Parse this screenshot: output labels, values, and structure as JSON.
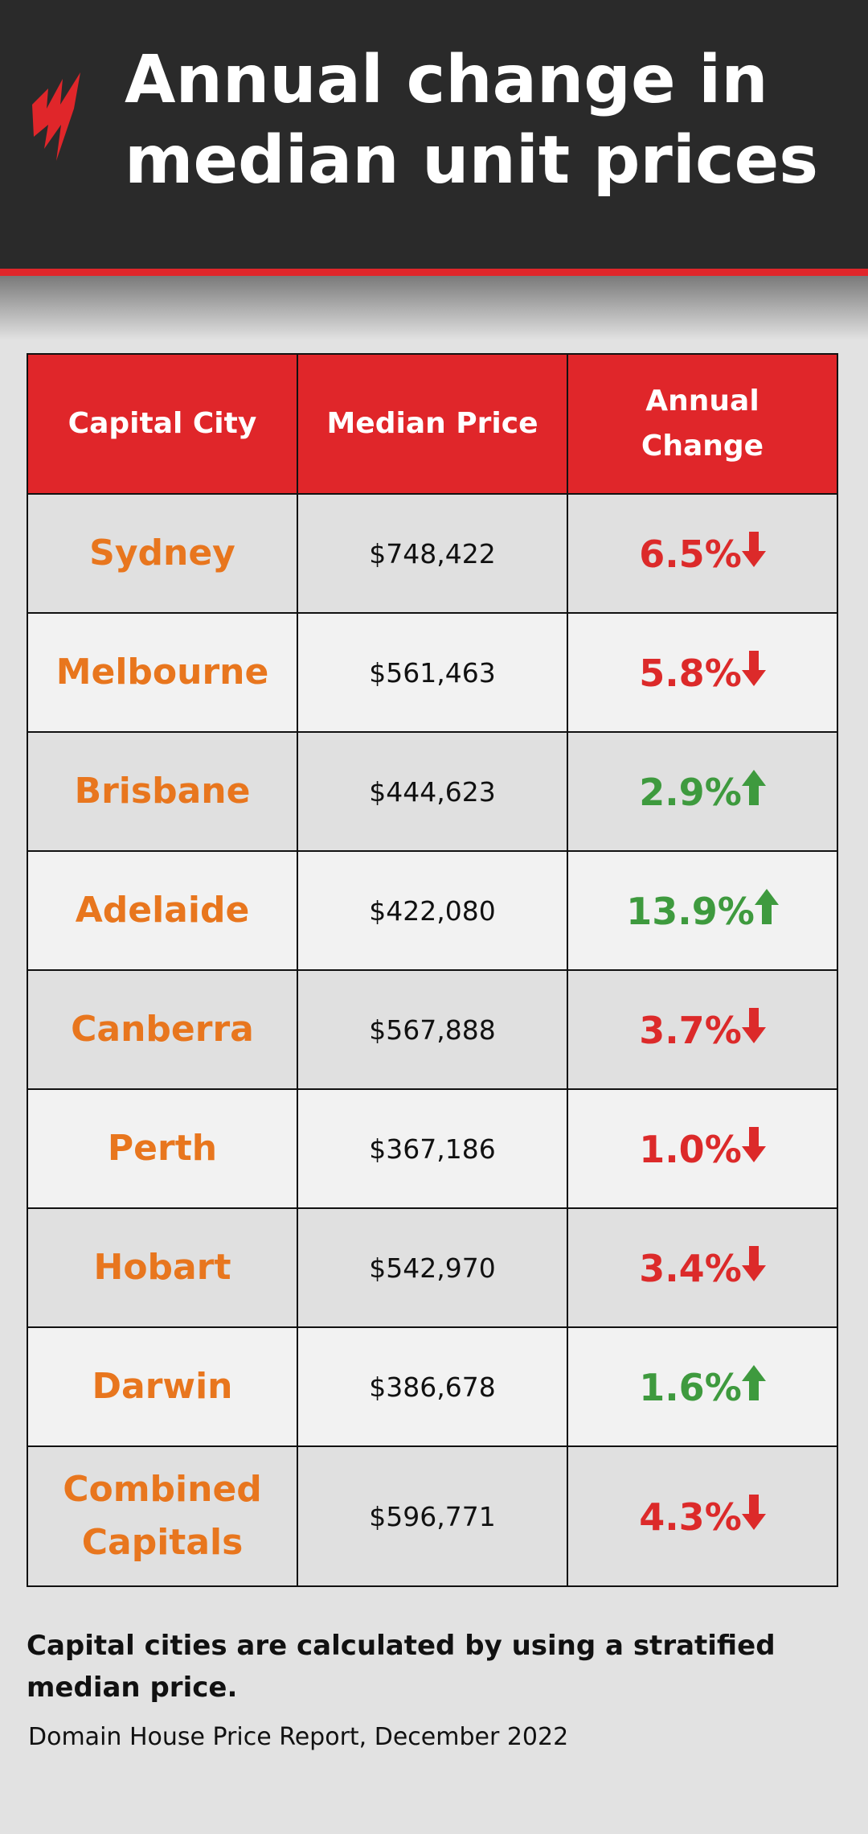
{
  "header": {
    "title_lines": [
      "Annual change in",
      "median unit prices"
    ]
  },
  "table": {
    "columns": [
      "Capital City",
      "Median Price",
      [
        "Annual",
        "Change"
      ]
    ],
    "rows": [
      {
        "city": "Sydney",
        "price": "$748,422",
        "change": "6.5%",
        "direction": "down"
      },
      {
        "city": "Melbourne",
        "price": "$561,463",
        "change": "5.8%",
        "direction": "down"
      },
      {
        "city": "Brisbane",
        "price": "$444,623",
        "change": "2.9%",
        "direction": "up"
      },
      {
        "city": "Adelaide",
        "price": "$422,080",
        "change": "13.9%",
        "direction": "up"
      },
      {
        "city": "Canberra",
        "price": "$567,888",
        "change": "3.7%",
        "direction": "down"
      },
      {
        "city": "Perth",
        "price": "$367,186",
        "change": "1.0%",
        "direction": "down"
      },
      {
        "city": "Hobart",
        "price": "$542,970",
        "change": "3.4%",
        "direction": "down"
      },
      {
        "city": "Darwin",
        "price": "$386,678",
        "change": "1.6%",
        "direction": "up"
      },
      {
        "city": "Combined Capitals",
        "price": "$596,771",
        "change": "4.3%",
        "direction": "down"
      }
    ]
  },
  "footnote": "Capital cities are calculated by using a stratified median price.",
  "source": "Domain House Price Report, December 2022"
}
